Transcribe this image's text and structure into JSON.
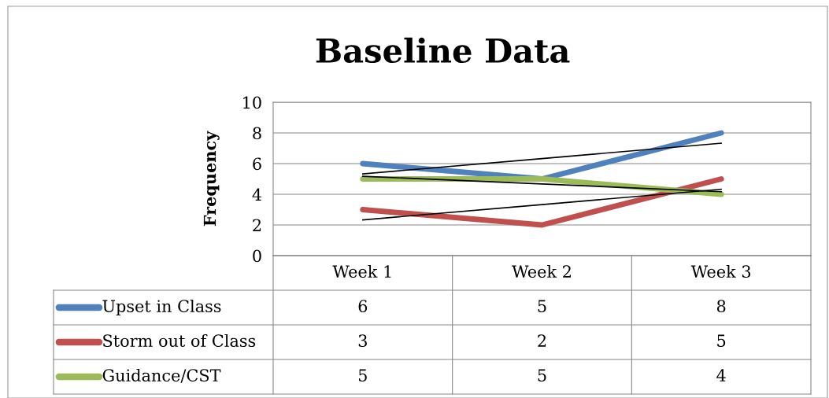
{
  "chart_data": {
    "type": "line",
    "title": "Baseline Data",
    "ylabel": "Frequency",
    "categories": [
      "Week 1",
      "Week 2",
      "Week 3"
    ],
    "series": [
      {
        "name": "Upset in Class",
        "color": "#4f81bd",
        "values": [
          6,
          5,
          8
        ],
        "value_labels": [
          "6",
          "5",
          "8"
        ]
      },
      {
        "name": "Storm out of Class",
        "color": "#c0504d",
        "values": [
          3,
          2,
          5
        ],
        "value_labels": [
          "3",
          "2",
          "5"
        ]
      },
      {
        "name": "Guidance/CST",
        "color": "#9bbb59",
        "values": [
          5,
          5,
          4
        ],
        "value_labels": [
          "5",
          "5",
          "4"
        ]
      },
      {
        "type": "line",
        "color": "#000000",
        "values": [
          5.33,
          6.33,
          7.33
        ]
      },
      {
        "type": "line",
        "color": "#000000",
        "values": [
          2.33,
          3.33,
          4.33
        ]
      },
      {
        "type": "line",
        "color": "#000000",
        "values": [
          5.17,
          4.67,
          4.17
        ]
      }
    ],
    "ylim": [
      0,
      10
    ],
    "yticks": [
      0,
      2,
      4,
      6,
      8,
      10
    ],
    "grid": "y",
    "legend": "bottom",
    "marker": "none",
    "line_style": "solid"
  }
}
